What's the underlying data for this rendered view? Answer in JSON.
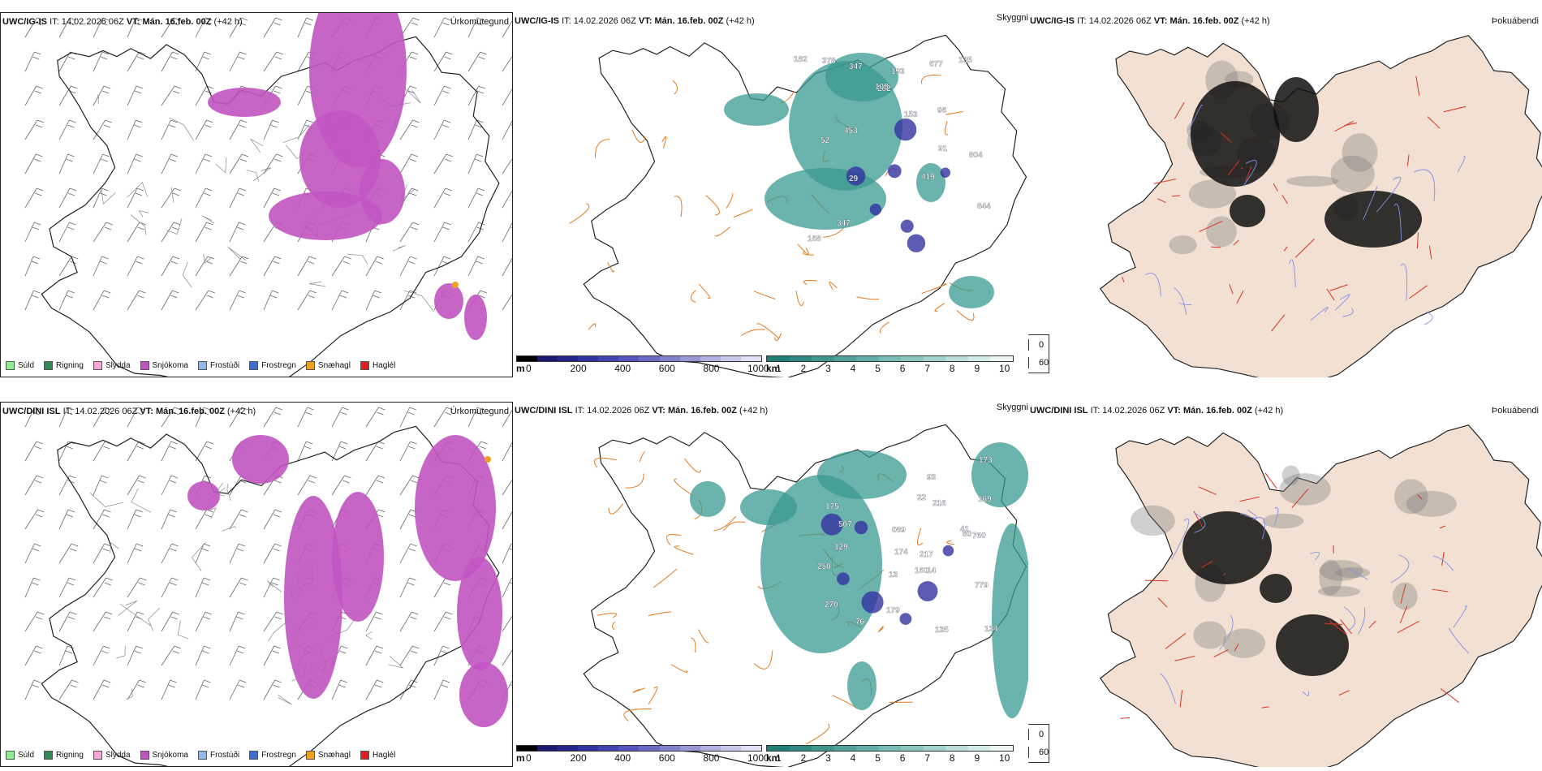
{
  "header": {
    "it_label": "IT:",
    "it_value": "14.02.2026 06Z",
    "vt_label": "VT:",
    "vt_value": "Mán. 16.feb. 00Z",
    "lead": "(+42 h)"
  },
  "rows": [
    {
      "model": "UWC/IG-IS"
    },
    {
      "model": "UWC/DINI ISL"
    }
  ],
  "panel_titles": {
    "precip": "Úrkomutegund",
    "visibility": "Skyggni",
    "fog": "Þokuábendi"
  },
  "precip_legend": [
    {
      "label": "Súld",
      "color": "#90ee90"
    },
    {
      "label": "Rigning",
      "color": "#2e8b57"
    },
    {
      "label": "Slydda",
      "color": "#f4a6d7"
    },
    {
      "label": "Snjókoma",
      "color": "#c154c1"
    },
    {
      "label": "Frostúði",
      "color": "#8fb8ee"
    },
    {
      "label": "Frostregn",
      "color": "#3f6fc8"
    },
    {
      "label": "Snæhagl",
      "color": "#f0a020"
    },
    {
      "label": "Haglél",
      "color": "#e02020"
    }
  ],
  "height_colorbar": {
    "unit": "m",
    "ticks": [
      "0",
      "200",
      "400",
      "600",
      "800",
      "1000"
    ],
    "colors": [
      "#000000",
      "#1a1a70",
      "#26268a",
      "#3333a0",
      "#4444b0",
      "#5555bb",
      "#6a6ac6",
      "#8080cf",
      "#9898d8",
      "#b0b0e2",
      "#c8c8ec",
      "#e0e0f6"
    ]
  },
  "visibility_colorbar": {
    "unit": "km",
    "ticks": [
      "1",
      "2",
      "3",
      "4",
      "5",
      "6",
      "7",
      "8",
      "9",
      "10"
    ],
    "colors": [
      "#1f7f78",
      "#2e8a83",
      "#3f968f",
      "#50a29b",
      "#63aea8",
      "#78bab5",
      "#8dc6c1",
      "#a3d2ce",
      "#bbdedb",
      "#d3ebe9",
      "#ebf6f5"
    ]
  },
  "fog_legend": [
    {
      "label": "0",
      "color": "#000000"
    },
    {
      "label": "60",
      "color": "#ffffff"
    }
  ],
  "ceiling_labels": [
    [
      "844",
      "52",
      "804",
      "347",
      "29",
      "453",
      "168",
      "182",
      "378",
      "91",
      "347",
      "282",
      "135",
      "153",
      "193",
      "108",
      "677",
      "96",
      "419"
    ],
    [
      "089",
      "250",
      "760",
      "179",
      "175",
      "507",
      "270",
      "14",
      "22",
      "76",
      "173",
      "779",
      "41",
      "174",
      "13",
      "169",
      "135",
      "134",
      "93",
      "216",
      "129",
      "217",
      "160",
      "80"
    ]
  ],
  "colors": {
    "snow": "#c154c1",
    "mix": "#f0a020",
    "visibility_fill": "#3a9a92",
    "ceiling_fill": "#3333a0",
    "roads": "#e07b20",
    "land": "#f2e0d2",
    "fog_roads": "#d93020",
    "rivers": "#7f8fe8",
    "coast": "#222222"
  }
}
